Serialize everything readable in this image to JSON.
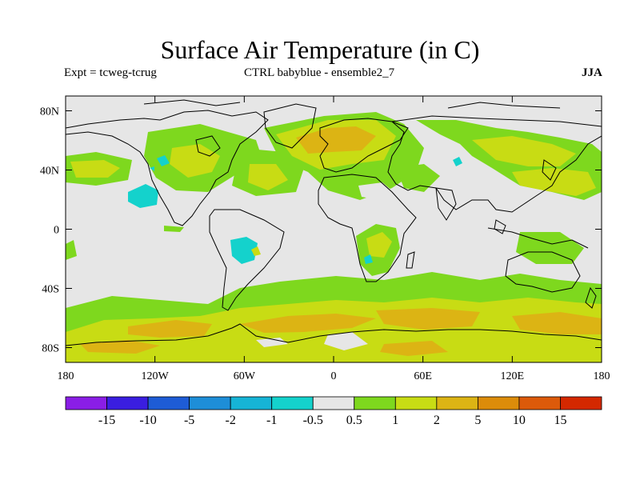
{
  "title": "Surface Air Temperature (in C)",
  "left_subtitle": "Expt = tcweg-tcrug",
  "center_subtitle": "CTRL babyblue - ensemble2_7",
  "right_subtitle": "JJA",
  "lat_ticks": [
    {
      "label": "80N",
      "value": 80
    },
    {
      "label": "40N",
      "value": 40
    },
    {
      "label": "0",
      "value": 0
    },
    {
      "label": "40S",
      "value": -40
    },
    {
      "label": "80S",
      "value": -80
    }
  ],
  "lon_ticks": [
    {
      "label": "180",
      "value": -180
    },
    {
      "label": "120W",
      "value": -120
    },
    {
      "label": "60W",
      "value": -60
    },
    {
      "label": "0",
      "value": 0
    },
    {
      "label": "60E",
      "value": 60
    },
    {
      "label": "120E",
      "value": 120
    },
    {
      "label": "180",
      "value": 180
    }
  ],
  "colorbar": {
    "colors": [
      "#8a1ee6",
      "#3a1ee0",
      "#1e5cd6",
      "#1e8ed8",
      "#16b4d6",
      "#14d2cc",
      "#e6e6e6",
      "#7ed81e",
      "#c8dc14",
      "#dcb414",
      "#dc8c0a",
      "#dc5a0a",
      "#d42800"
    ],
    "labels": [
      "-15",
      "-10",
      "-5",
      "-2",
      "-1",
      "-0.5",
      "0.5",
      "1",
      "2",
      "5",
      "10",
      "15"
    ]
  },
  "colors": {
    "land_nochange": "#e6e6e6",
    "pos_small": "#7ed81e",
    "pos_mid": "#c8dc14",
    "pos_large": "#dcb414",
    "neg_small": "#14d2cc"
  }
}
